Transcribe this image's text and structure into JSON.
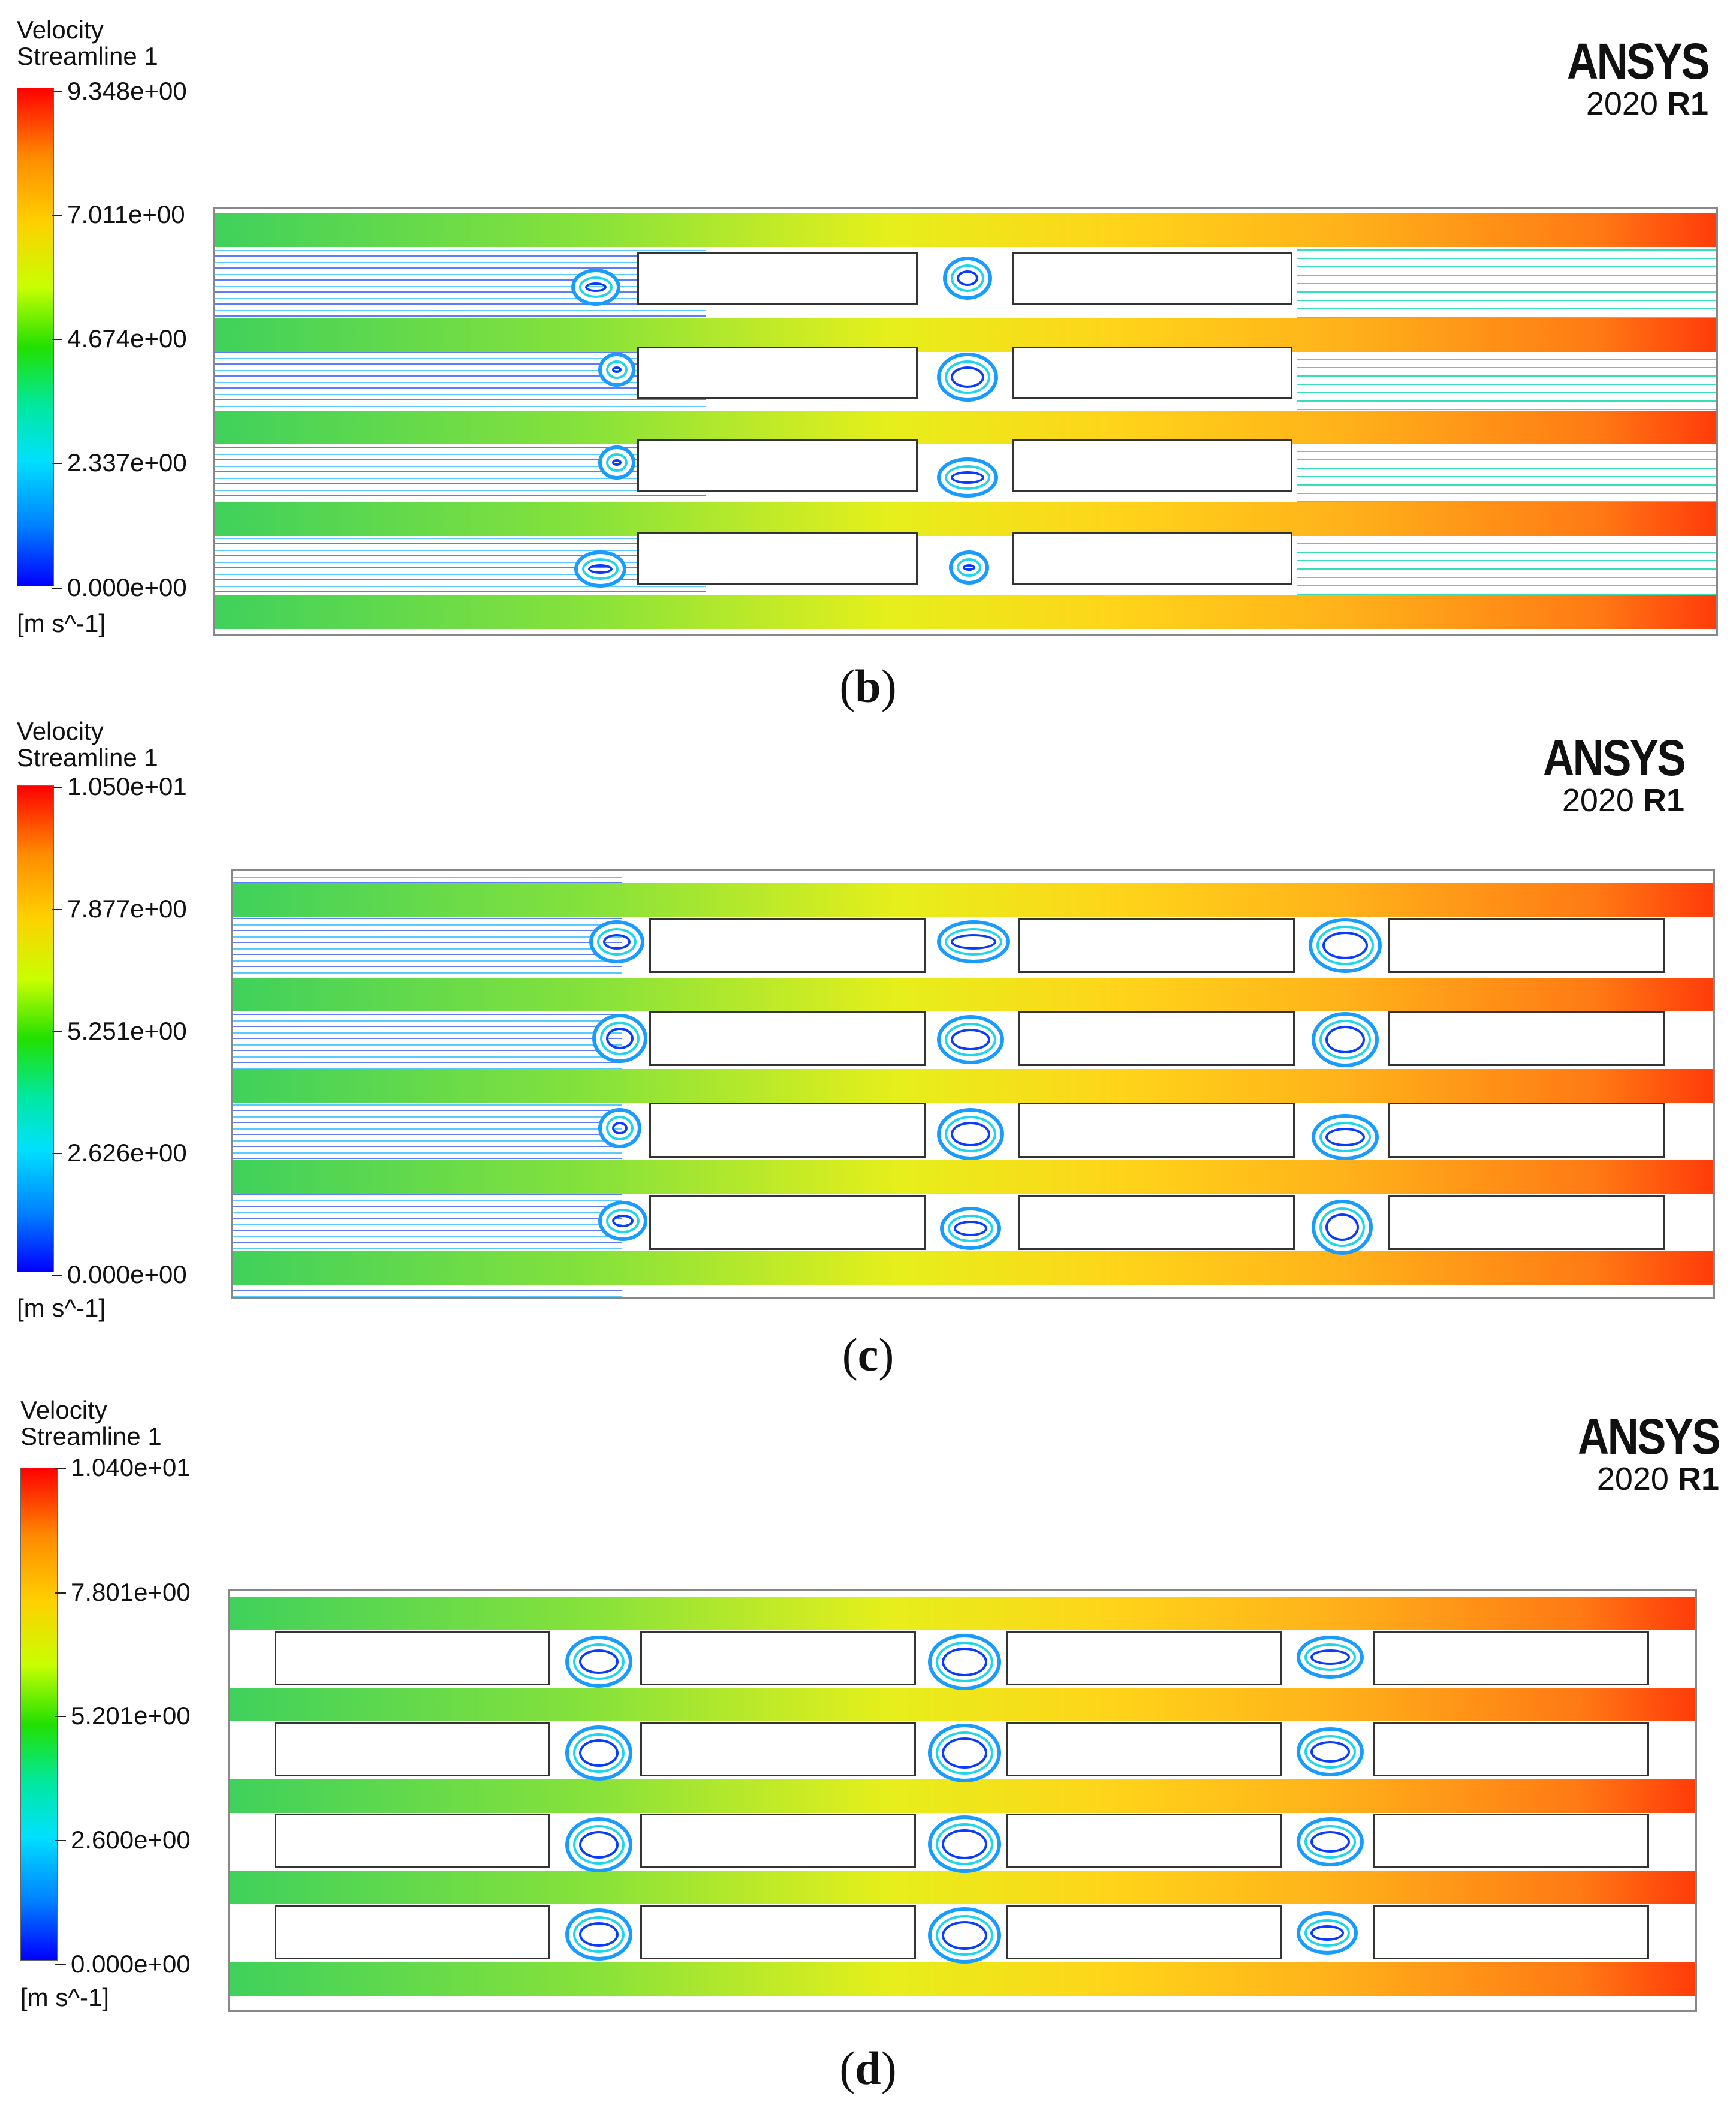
{
  "panels": [
    {
      "id": "b",
      "legend": {
        "title": "Velocity\nStreamline 1",
        "max": "9.348e+00",
        "t1": "7.011e+00",
        "t2": "4.674e+00",
        "t3": "2.337e+00",
        "min": "0.000e+00",
        "units": "[m s^-1]"
      },
      "brand": {
        "name": "ANSYS",
        "version": "2020",
        "release": "R1"
      },
      "caption": "b"
    },
    {
      "id": "c",
      "legend": {
        "title": "Velocity\nStreamline 1",
        "max": "1.050e+01",
        "t1": "7.877e+00",
        "t2": "5.251e+00",
        "t3": "2.626e+00",
        "min": "0.000e+00",
        "units": "[m s^-1]"
      },
      "brand": {
        "name": "ANSYS",
        "version": "2020",
        "release": "R1"
      },
      "caption": "c"
    },
    {
      "id": "d",
      "legend": {
        "title": "Velocity\nStreamline 1",
        "max": "1.040e+01",
        "t1": "7.801e+00",
        "t2": "5.201e+00",
        "t3": "2.600e+00",
        "min": "0.000e+00",
        "units": "[m s^-1]"
      },
      "brand": {
        "name": "ANSYS",
        "version": "2020",
        "release": "R1"
      },
      "caption": "d"
    }
  ]
}
